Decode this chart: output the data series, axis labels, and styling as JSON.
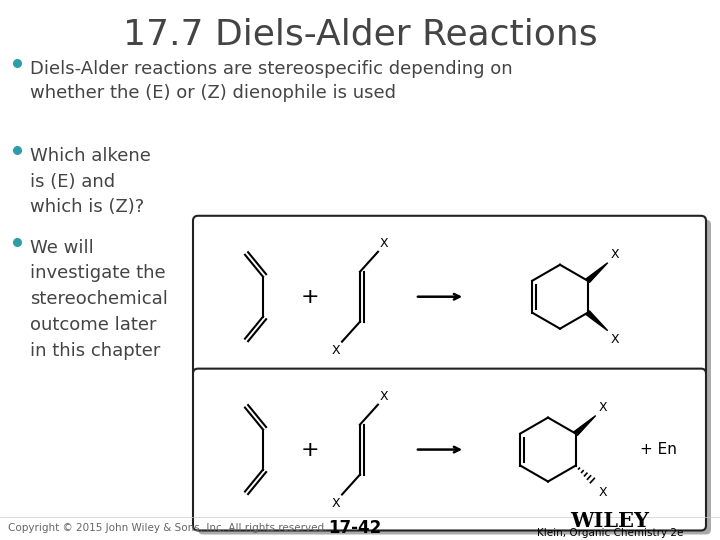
{
  "title": "17.7 Diels-Alder Reactions",
  "title_fontsize": 26,
  "title_color": "#444444",
  "bg_color": "#ffffff",
  "bullet_color": "#2E9DAA",
  "bullet1": "Diels-Alder reactions are stereospecific depending on\nwhether the (E) or (Z) dienophile is used",
  "bullet2_line1": "Which alkene",
  "bullet2_line2": "is (E) and",
  "bullet2_line3": "which is (Z)?",
  "bullet3_line1": "We will",
  "bullet3_line2": "investigate the",
  "bullet3_line3": "stereochemical",
  "bullet3_line4": "outcome later",
  "bullet3_line5": "in this chapter",
  "footer_copyright": "Copyright © 2015 John Wiley & Sons, Inc. All rights reserved.",
  "footer_page": "17-42",
  "footer_publisher": "Klein, Organic Chemistry 2e",
  "footer_wiley": "WILEY",
  "text_fontsize": 13,
  "small_fontsize": 7.5,
  "box_edge_color": "#222222",
  "text_color": "#444444"
}
